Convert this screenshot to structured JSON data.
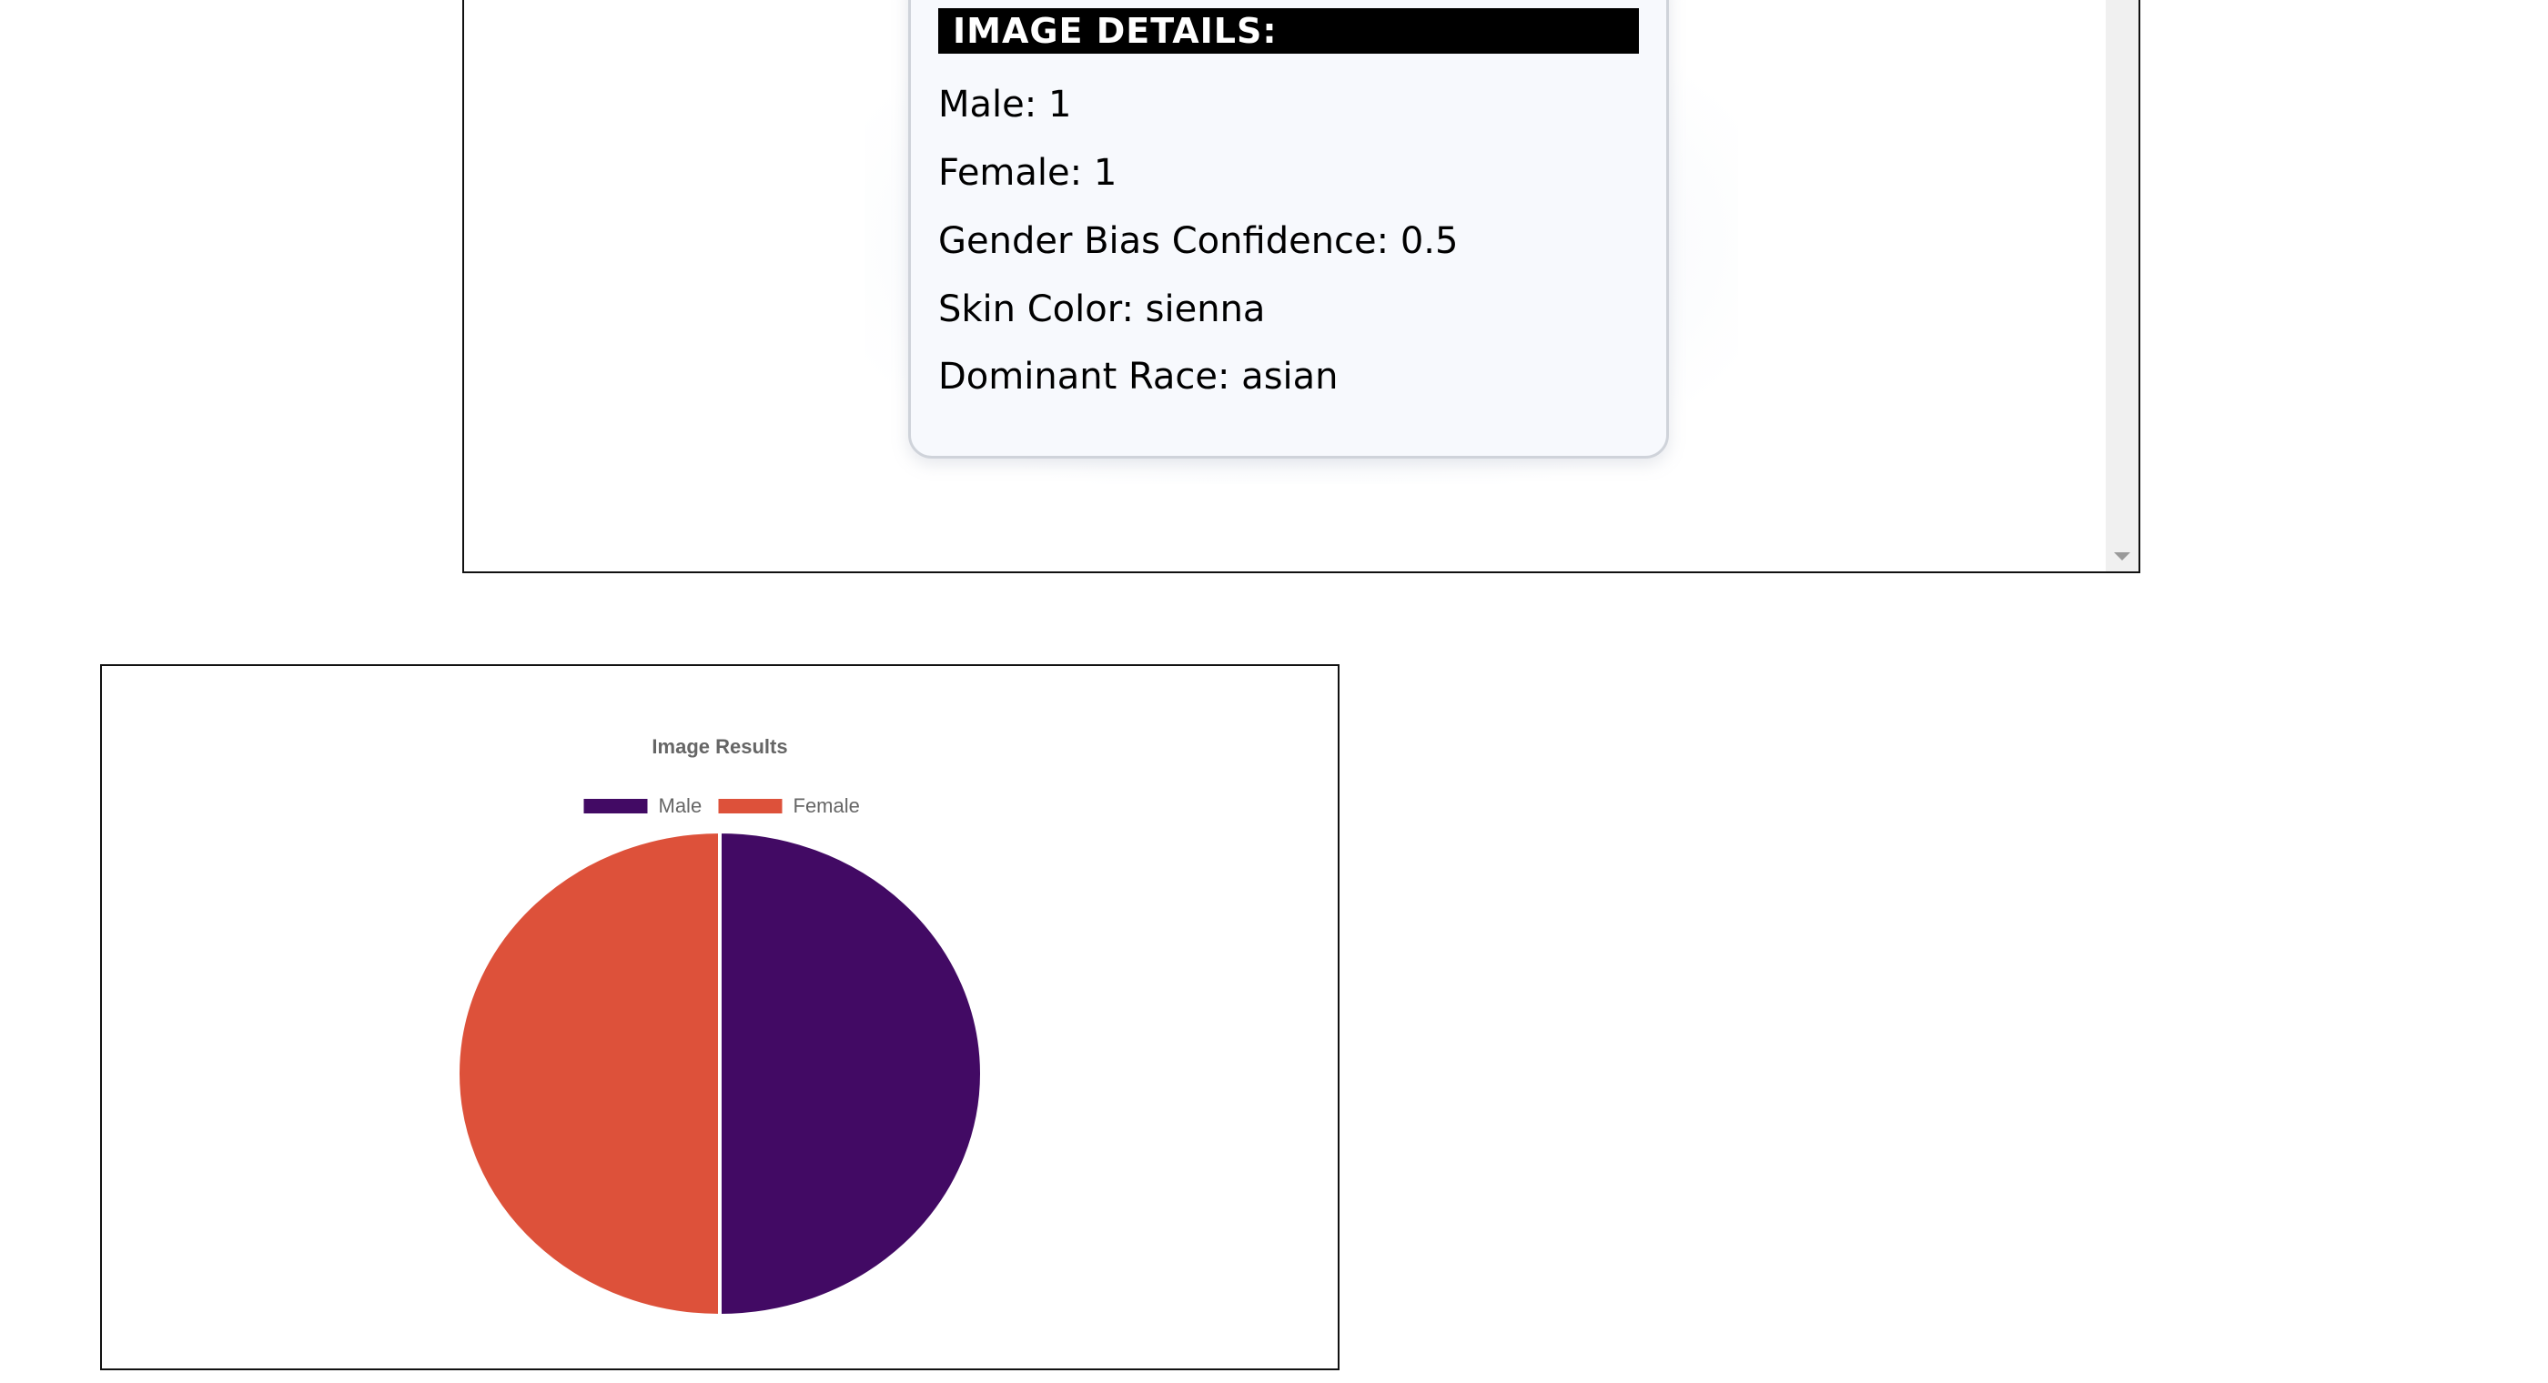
{
  "details": {
    "heading": "IMAGE DETAILS:",
    "lines": [
      {
        "label": "Male",
        "value": "1",
        "text": "Male: 1"
      },
      {
        "label": "Female",
        "value": "1",
        "text": "Female: 1"
      },
      {
        "label": "Gender Bias Confidence",
        "value": "0.5",
        "text": "Gender Bias Confidence: 0.5"
      },
      {
        "label": "Skin Color",
        "value": "sienna",
        "text": "Skin Color: sienna"
      },
      {
        "label": "Dominant Race",
        "value": "asian",
        "text": "Dominant Race: asian"
      }
    ]
  },
  "colors": {
    "male": "#420a64",
    "female": "#dd513a",
    "heading_bg": "#000000",
    "card_bg": "#f7f9fd"
  },
  "chart_data": {
    "type": "pie",
    "title": "Image Results",
    "legend_position": "top",
    "categories": [
      "Male",
      "Female"
    ],
    "values": [
      1,
      1
    ],
    "colors": [
      "#420a64",
      "#dd513a"
    ]
  }
}
